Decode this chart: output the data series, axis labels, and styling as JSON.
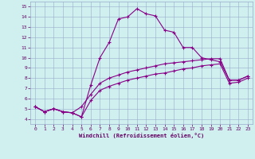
{
  "xlabel": "Windchill (Refroidissement éolien,°C)",
  "background_color": "#cff0ee",
  "line_color": "#880088",
  "xlim": [
    -0.5,
    23.5
  ],
  "ylim": [
    3.5,
    15.5
  ],
  "yticks": [
    4,
    5,
    6,
    7,
    8,
    9,
    10,
    11,
    12,
    13,
    14,
    15
  ],
  "xticks": [
    0,
    1,
    2,
    3,
    4,
    5,
    6,
    7,
    8,
    9,
    10,
    11,
    12,
    13,
    14,
    15,
    16,
    17,
    18,
    19,
    20,
    21,
    22,
    23
  ],
  "series1_x": [
    0,
    1,
    2,
    3,
    4,
    5,
    6,
    7,
    8,
    9,
    10,
    11,
    12,
    13,
    14,
    15,
    16,
    17,
    18,
    19,
    20,
    21,
    22,
    23
  ],
  "series1_y": [
    5.2,
    4.7,
    5.0,
    4.7,
    4.6,
    4.2,
    7.3,
    10.0,
    11.5,
    13.8,
    14.0,
    14.8,
    14.3,
    14.1,
    12.7,
    12.5,
    11.0,
    11.0,
    10.0,
    9.8,
    9.6,
    7.8,
    7.8,
    8.2
  ],
  "series2_x": [
    0,
    1,
    2,
    3,
    4,
    5,
    6,
    7,
    8,
    9,
    10,
    11,
    12,
    13,
    14,
    15,
    16,
    17,
    18,
    19,
    20,
    21,
    22,
    23
  ],
  "series2_y": [
    5.2,
    4.7,
    5.0,
    4.7,
    4.6,
    5.2,
    6.4,
    7.5,
    8.0,
    8.3,
    8.6,
    8.8,
    9.0,
    9.2,
    9.4,
    9.5,
    9.6,
    9.7,
    9.8,
    9.9,
    9.9,
    7.8,
    7.8,
    8.2
  ],
  "series3_x": [
    0,
    1,
    2,
    3,
    4,
    5,
    6,
    7,
    8,
    9,
    10,
    11,
    12,
    13,
    14,
    15,
    16,
    17,
    18,
    19,
    20,
    21,
    22,
    23
  ],
  "series3_y": [
    5.2,
    4.7,
    5.0,
    4.7,
    4.6,
    4.2,
    5.8,
    6.8,
    7.2,
    7.5,
    7.8,
    8.0,
    8.2,
    8.4,
    8.5,
    8.7,
    8.9,
    9.0,
    9.2,
    9.3,
    9.4,
    7.5,
    7.6,
    8.0
  ],
  "grid_color": "#99aacc",
  "font_color": "#660066",
  "font_family": "monospace"
}
